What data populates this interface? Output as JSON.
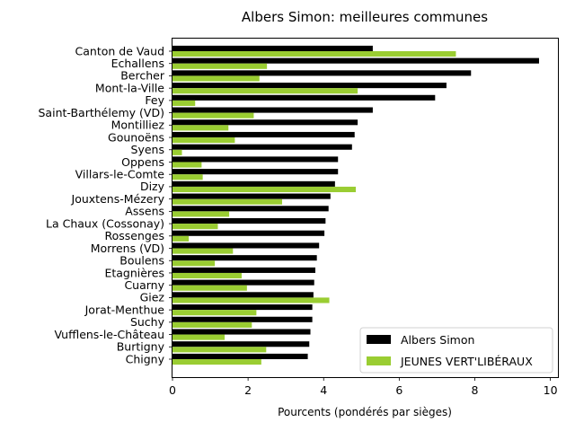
{
  "chart_data": {
    "type": "bar",
    "orientation": "horizontal",
    "title": "Albers Simon: meilleures communes",
    "xlabel": "Pourcents (pondérés par sièges)",
    "ylabel": "",
    "xlim": [
      0,
      10.2
    ],
    "xticks": [
      0,
      2,
      4,
      6,
      8,
      10
    ],
    "grid": false,
    "legend_position": "lower-right",
    "categories": [
      "Canton de Vaud",
      "Echallens",
      "Bercher",
      "Mont-la-Ville",
      "Fey",
      "Saint-Barthélemy (VD)",
      "Montilliez",
      "Gounoëns",
      "Syens",
      "Oppens",
      "Villars-le-Comte",
      "Dizy",
      "Jouxtens-Mézery",
      "Assens",
      "La Chaux (Cossonay)",
      "Rossenges",
      "Morrens (VD)",
      "Boulens",
      "Etagnières",
      "Cuarny",
      "Giez",
      "Jorat-Menthue",
      "Suchy",
      "Vufflens-le-Château",
      "Burtigny",
      "Chigny"
    ],
    "series": [
      {
        "name": "Albers Simon",
        "color": "#000000",
        "values": [
          5.3,
          9.7,
          7.9,
          7.25,
          6.95,
          5.3,
          4.9,
          4.82,
          4.75,
          4.38,
          4.38,
          4.3,
          4.18,
          4.13,
          4.05,
          4.02,
          3.88,
          3.82,
          3.78,
          3.75,
          3.73,
          3.7,
          3.7,
          3.65,
          3.62,
          3.58
        ]
      },
      {
        "name": "JEUNES VERT'LIBÉRAUX",
        "color": "#9acd32",
        "values": [
          7.5,
          2.5,
          2.3,
          4.9,
          0.6,
          2.15,
          1.48,
          1.65,
          0.25,
          0.77,
          0.8,
          4.85,
          2.9,
          1.5,
          1.2,
          0.43,
          1.6,
          1.12,
          1.83,
          1.97,
          4.15,
          2.22,
          2.1,
          1.38,
          2.48,
          2.35
        ]
      }
    ]
  }
}
